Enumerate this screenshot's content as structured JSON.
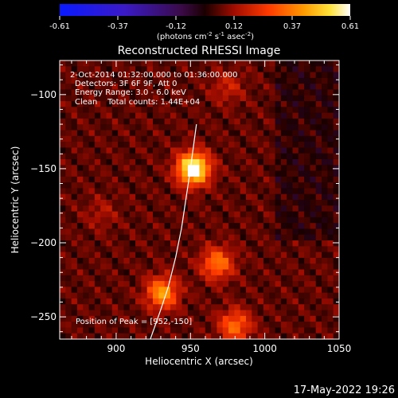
{
  "chart_data": {
    "type": "heatmap",
    "title": "Reconstructed RHESSI Image",
    "xlabel": "Heliocentric X (arcsec)",
    "ylabel": "Heliocentric Y (arcsec)",
    "xlim": [
      862,
      1050
    ],
    "ylim": [
      -265,
      -77
    ],
    "x_ticks": [
      900,
      950,
      1000,
      1050
    ],
    "y_ticks": [
      -100,
      -150,
      -200,
      -250
    ],
    "colorbar": {
      "range": [
        -0.61,
        0.61
      ],
      "ticks": [
        "-0.61",
        "-0.37",
        "-0.12",
        "0.12",
        "0.37",
        "0.61"
      ],
      "units_prefix": "(photons cm",
      "units_exp1": "-2",
      "units_mid1": " s",
      "units_exp2": "-1",
      "units_mid2": " asec",
      "units_exp3": "-2",
      "units_suffix": ")",
      "colormap": "black-red-orange-yellow-white with blue-violet negatives"
    },
    "annotations": [
      "2-Oct-2014 01:32:00.000 to 01:36:00.000",
      "Detectors: 3F 6F 9F, Att 0",
      "Energy Range: 3.0 - 6.0 keV",
      "Clean    Total counts: 1.44E+04"
    ],
    "peak_label": "Position of Peak = [952,-150]",
    "peak": {
      "x": 952,
      "y": -150
    },
    "sources": [
      {
        "x": 952,
        "y": -150,
        "amp": 0.61
      },
      {
        "x": 968,
        "y": -214,
        "amp": 0.3
      },
      {
        "x": 931,
        "y": -234,
        "amp": 0.36
      },
      {
        "x": 980,
        "y": -256,
        "amp": 0.28
      },
      {
        "x": 975,
        "y": -95,
        "amp": 0.12
      },
      {
        "x": 890,
        "y": -180,
        "amp": 0.08
      }
    ],
    "limb_curve": [
      [
        954,
        -120
      ],
      [
        952,
        -135
      ],
      [
        950,
        -150
      ],
      [
        947,
        -170
      ],
      [
        944,
        -190
      ],
      [
        940,
        -210
      ],
      [
        935,
        -230
      ],
      [
        930,
        -245
      ],
      [
        923,
        -265
      ]
    ],
    "grid": false
  },
  "footer": {
    "timestamp": "17-May-2022 19:26"
  }
}
